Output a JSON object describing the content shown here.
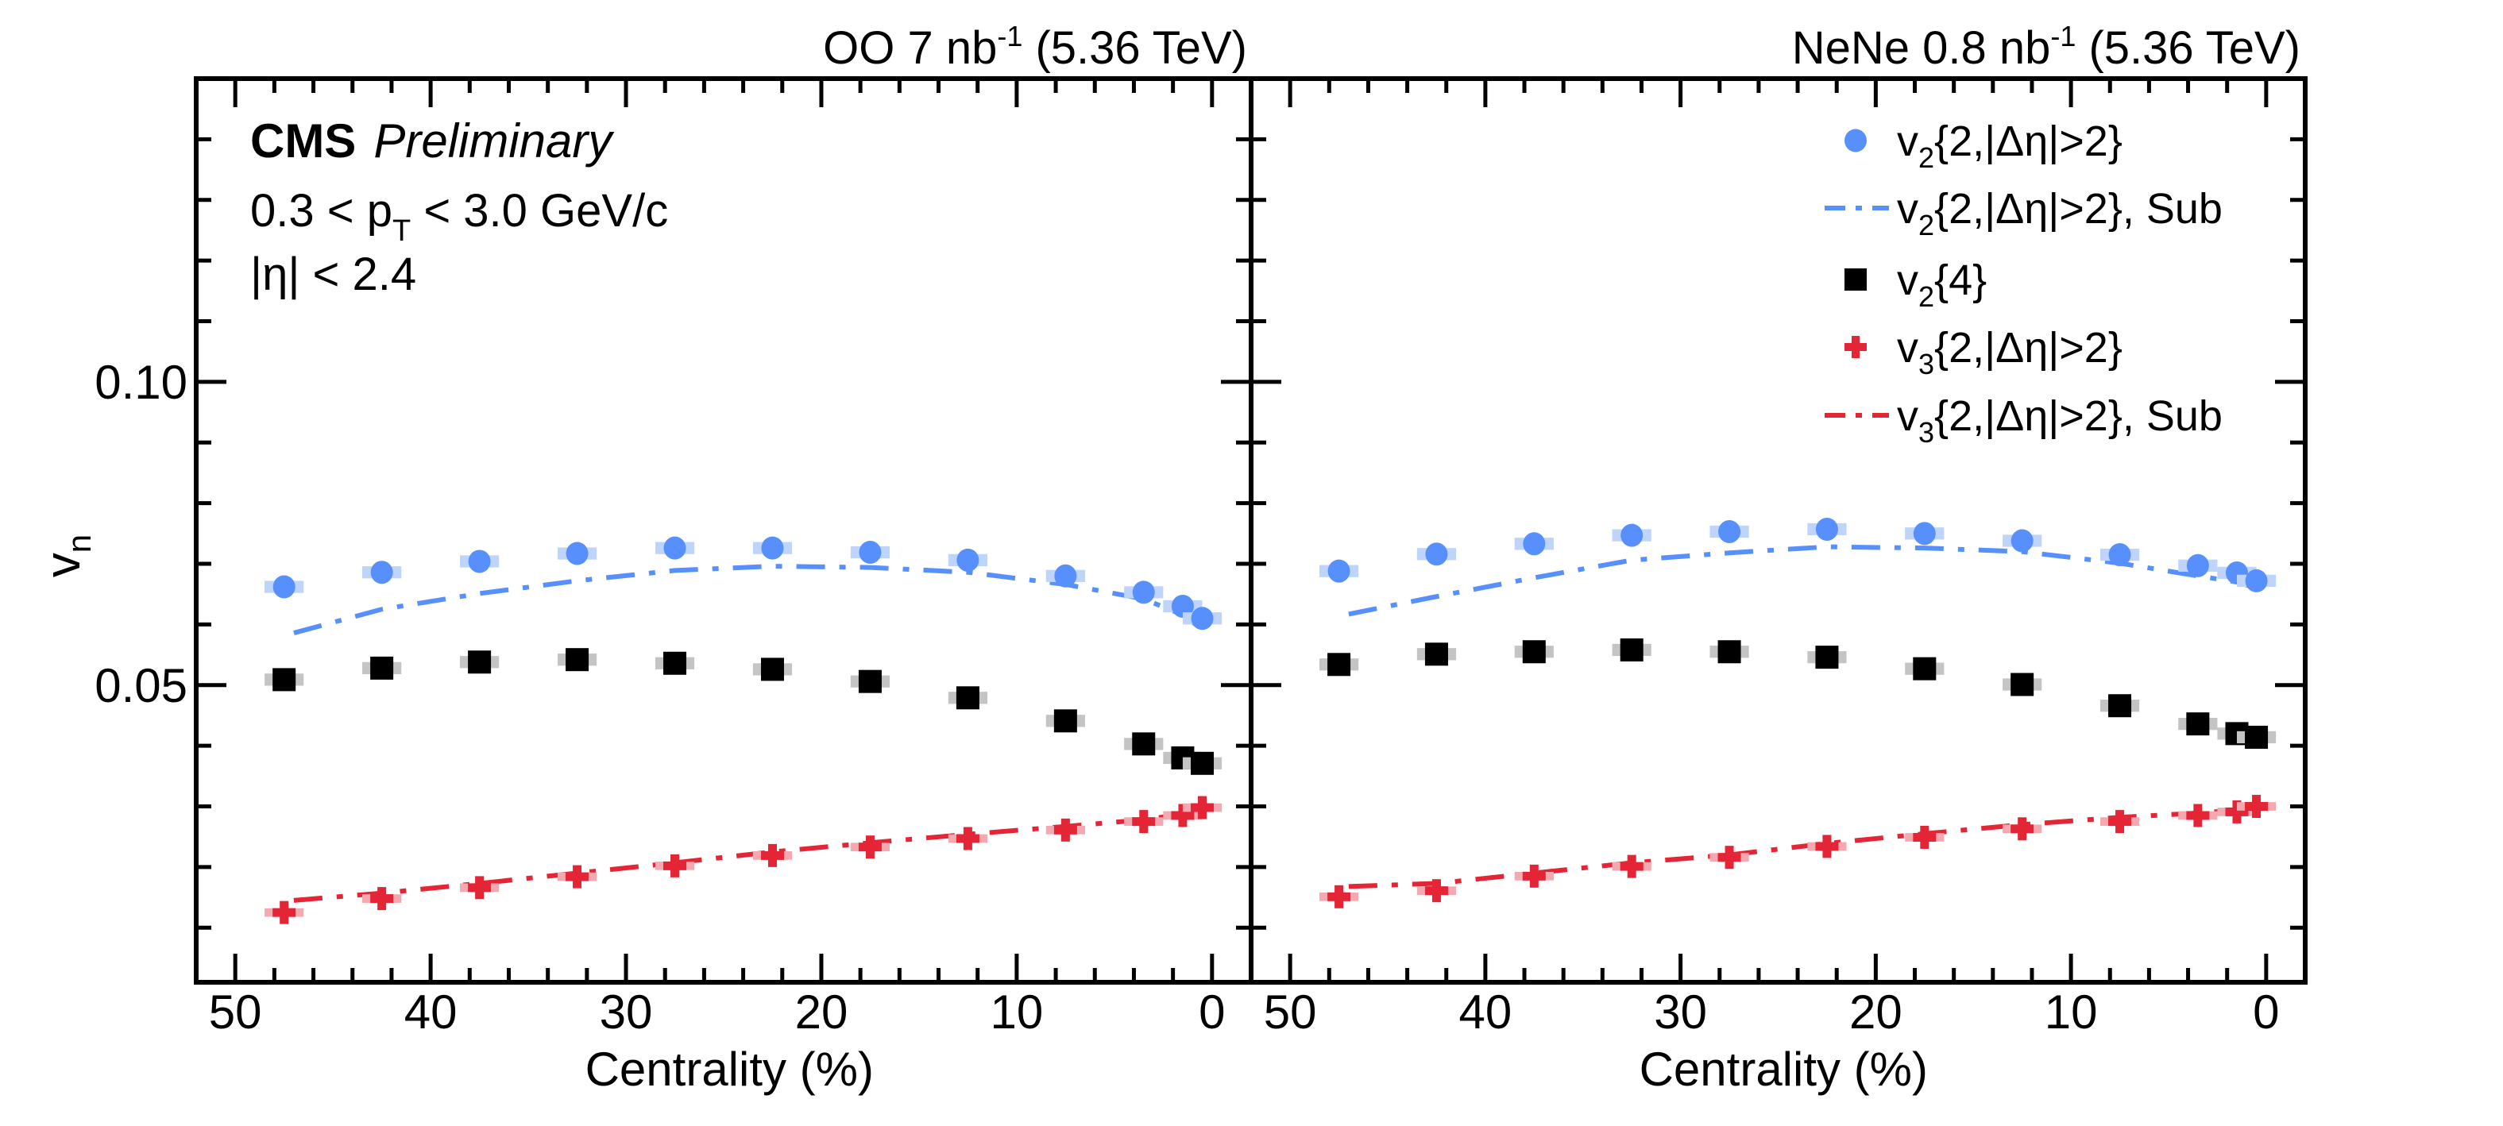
{
  "chart_data": {
    "type": "scatter",
    "common": {
      "ylabel": "v",
      "ylabel_sub": "n",
      "xlabel": "Centrality (%)",
      "xlim": [
        52,
        -2
      ],
      "ylim": [
        0.001,
        0.15
      ],
      "x_major_ticks": [
        50,
        40,
        30,
        20,
        10,
        0
      ],
      "x_tick_labels": [
        "50",
        "40",
        "30",
        "20",
        "10",
        "0"
      ],
      "x_minor_step": 2,
      "y_major_ticks": [
        0.05,
        0.1
      ],
      "y_tick_labels": [
        "0.05",
        "0.10"
      ],
      "y_minor_step": 0.01,
      "grid": false,
      "legend_placement": "top-right of right panel"
    },
    "annotations": {
      "experiment": "CMS",
      "status": "Preliminary",
      "pt_pre": "0.3 < p",
      "pt_sub": "T",
      "pt_post": " < 3.0 GeV/c",
      "eta": "|η| < 2.4"
    },
    "colors": {
      "v2_2": "#5790fc",
      "v2_2_syst": "#bed4fb",
      "v2_4": "#000000",
      "v2_4_syst": "#c4c4c4",
      "v3_2": "#e42536",
      "v3_2_syst": "#f4a9b0"
    },
    "legend": [
      {
        "key": "v2_2",
        "marker": "circle",
        "pre": "v",
        "sub": "2",
        "post": "{2,|Δη|>2}"
      },
      {
        "key": "v2_sub",
        "marker": "dashdot-line",
        "color": "#5790fc",
        "pre": "v",
        "sub": "2",
        "post": "{2,|Δη|>2}, Sub"
      },
      {
        "key": "v2_4",
        "marker": "square",
        "pre": "v",
        "sub": "2",
        "post": "{4}"
      },
      {
        "key": "v3_2",
        "marker": "cross",
        "pre": "v",
        "sub": "3",
        "post": "{2,|Δη|>2}"
      },
      {
        "key": "v3_sub",
        "marker": "dashdot-line",
        "color": "#e42536",
        "pre": "v",
        "sub": "3",
        "post": "{2,|Δη|>2}, Sub"
      }
    ],
    "panels": [
      {
        "system": "OO",
        "title_pre": "OO 7 nb",
        "title_sup": "-1",
        "title_post": " (5.36 TeV)",
        "x": [
          47.5,
          42.5,
          37.5,
          32.5,
          27.5,
          22.5,
          17.5,
          12.5,
          7.5,
          3.5,
          1.5,
          0.5
        ],
        "series": [
          {
            "name": "v2{2,|Δη|>2}",
            "key": "v2_2",
            "marker": "circle",
            "values": [
              0.0662,
              0.0686,
              0.0704,
              0.0717,
              0.0726,
              0.0726,
              0.0719,
              0.0706,
              0.068,
              0.0653,
              0.063,
              0.061
            ],
            "syst": 0.001
          },
          {
            "name": "v2{4}",
            "key": "v2_4",
            "marker": "square",
            "values": [
              0.0509,
              0.0528,
              0.0538,
              0.0542,
              0.0536,
              0.0526,
              0.0506,
              0.0479,
              0.0441,
              0.0403,
              0.038,
              0.0371
            ],
            "syst": 0.001
          },
          {
            "name": "v3{2,|Δη|>2}",
            "key": "v3_2",
            "marker": "cross",
            "values": [
              0.0125,
              0.0148,
              0.0166,
              0.0184,
              0.0202,
              0.0219,
              0.0233,
              0.0247,
              0.0261,
              0.0275,
              0.0285,
              0.0298
            ],
            "syst": 0.0007
          }
        ],
        "lines": [
          {
            "name": "v2{2,|Δη|>2}, Sub",
            "color": "#5790fc",
            "x": [
              47.0,
              42.5,
              37.5,
              32.5,
              27.5,
              22.5,
              17.5,
              12.5,
              7.5,
              3.5,
              1.5,
              0.5
            ],
            "values": [
              0.0586,
              0.0625,
              0.0651,
              0.0672,
              0.0689,
              0.0696,
              0.0694,
              0.0686,
              0.0666,
              0.0642,
              0.0616,
              0.0592
            ]
          },
          {
            "name": "v3{2,|Δη|>2}, Sub",
            "color": "#e42536",
            "x": [
              47.0,
              42.5,
              37.5,
              32.5,
              27.5,
              22.5,
              17.5,
              12.5,
              7.5,
              3.5,
              1.5,
              0.5
            ],
            "values": [
              0.0145,
              0.0157,
              0.0173,
              0.019,
              0.0207,
              0.0225,
              0.024,
              0.0254,
              0.0267,
              0.0278,
              0.0287,
              0.0297
            ]
          }
        ]
      },
      {
        "system": "NeNe",
        "title_pre": "NeNe 0.8 nb",
        "title_sup": "-1",
        "title_post": " (5.36 TeV)",
        "x": [
          47.5,
          42.5,
          37.5,
          32.5,
          27.5,
          22.5,
          17.5,
          12.5,
          7.5,
          3.5,
          1.5,
          0.5
        ],
        "series": [
          {
            "name": "v2{2,|Δη|>2}",
            "key": "v2_2",
            "marker": "circle",
            "values": [
              0.0688,
              0.0716,
              0.0733,
              0.0747,
              0.0753,
              0.0757,
              0.075,
              0.0738,
              0.0715,
              0.0697,
              0.0685,
              0.0672
            ],
            "syst": 0.001
          },
          {
            "name": "v2{4}",
            "key": "v2_4",
            "marker": "square",
            "values": [
              0.0534,
              0.0551,
              0.0555,
              0.0558,
              0.0555,
              0.0546,
              0.0527,
              0.0501,
              0.0466,
              0.0436,
              0.042,
              0.0414
            ],
            "syst": 0.001
          },
          {
            "name": "v3{2,|Δη|>2}",
            "key": "v3_2",
            "marker": "cross",
            "values": [
              0.0151,
              0.0161,
              0.0185,
              0.0201,
              0.0216,
              0.0234,
              0.0249,
              0.0263,
              0.0275,
              0.0285,
              0.0291,
              0.03
            ],
            "syst": 0.0007
          }
        ],
        "lines": [
          {
            "name": "v2{2,|Δη|>2}, Sub",
            "color": "#5790fc",
            "x": [
              47.0,
              42.5,
              37.5,
              32.5,
              27.5,
              22.5,
              17.5,
              12.5,
              7.5,
              3.5,
              1.5,
              0.5
            ],
            "values": [
              0.0617,
              0.0646,
              0.0677,
              0.0706,
              0.0718,
              0.0728,
              0.0726,
              0.072,
              0.0701,
              0.068,
              0.067,
              0.066
            ]
          },
          {
            "name": "v3{2,|Δη|>2}, Sub",
            "color": "#e42536",
            "x": [
              47.0,
              42.5,
              37.5,
              32.5,
              27.5,
              22.5,
              17.5,
              12.5,
              7.5,
              3.5,
              1.5,
              0.5
            ],
            "values": [
              0.0168,
              0.0173,
              0.019,
              0.0207,
              0.022,
              0.0239,
              0.0255,
              0.027,
              0.0282,
              0.0289,
              0.0294,
              0.03
            ]
          }
        ]
      }
    ]
  }
}
